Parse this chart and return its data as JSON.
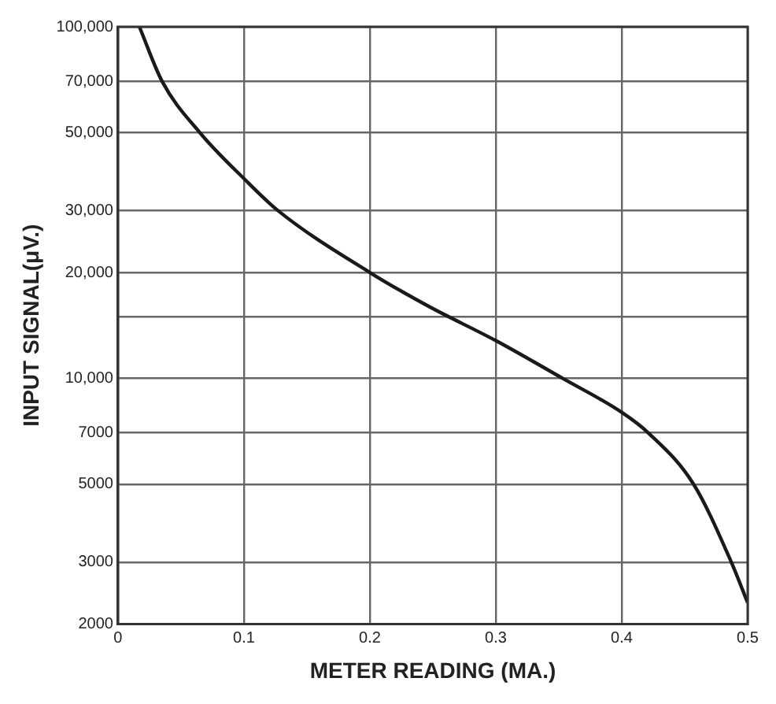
{
  "chart_data": {
    "type": "line",
    "xlabel": "METER READING (MA.)",
    "ylabel": "INPUT SIGNAL(μV.)",
    "x": [
      0.017,
      0.035,
      0.065,
      0.1,
      0.127,
      0.2,
      0.247,
      0.3,
      0.353,
      0.4,
      0.421,
      0.457,
      0.487,
      0.5
    ],
    "series": [
      {
        "color": "#1a1a1a",
        "values": [
          100000,
          70000,
          50000,
          37000,
          30000,
          20000,
          16000,
          12800,
          10000,
          8000,
          7000,
          5000,
          3000,
          2300
        ]
      }
    ],
    "xlim": [
      0,
      0.5
    ],
    "xticks": [
      0,
      0.1,
      0.2,
      0.3,
      0.4,
      0.5
    ],
    "ylim": [
      2000,
      100000
    ],
    "yticks": [
      2000,
      3000,
      5000,
      7000,
      {
        "value": 10000,
        "label": "10,000"
      },
      {
        "value": 15000,
        "label": null
      },
      {
        "value": 20000,
        "label": "20,000"
      },
      {
        "value": 30000,
        "label": "30,000"
      },
      {
        "value": 50000,
        "label": "50,000"
      },
      {
        "value": 70000,
        "label": "70,000"
      },
      {
        "value": 100000,
        "label": "100,000"
      }
    ],
    "log": "y",
    "grid": true,
    "legend": false,
    "marker": "none",
    "line_style": "solid"
  }
}
